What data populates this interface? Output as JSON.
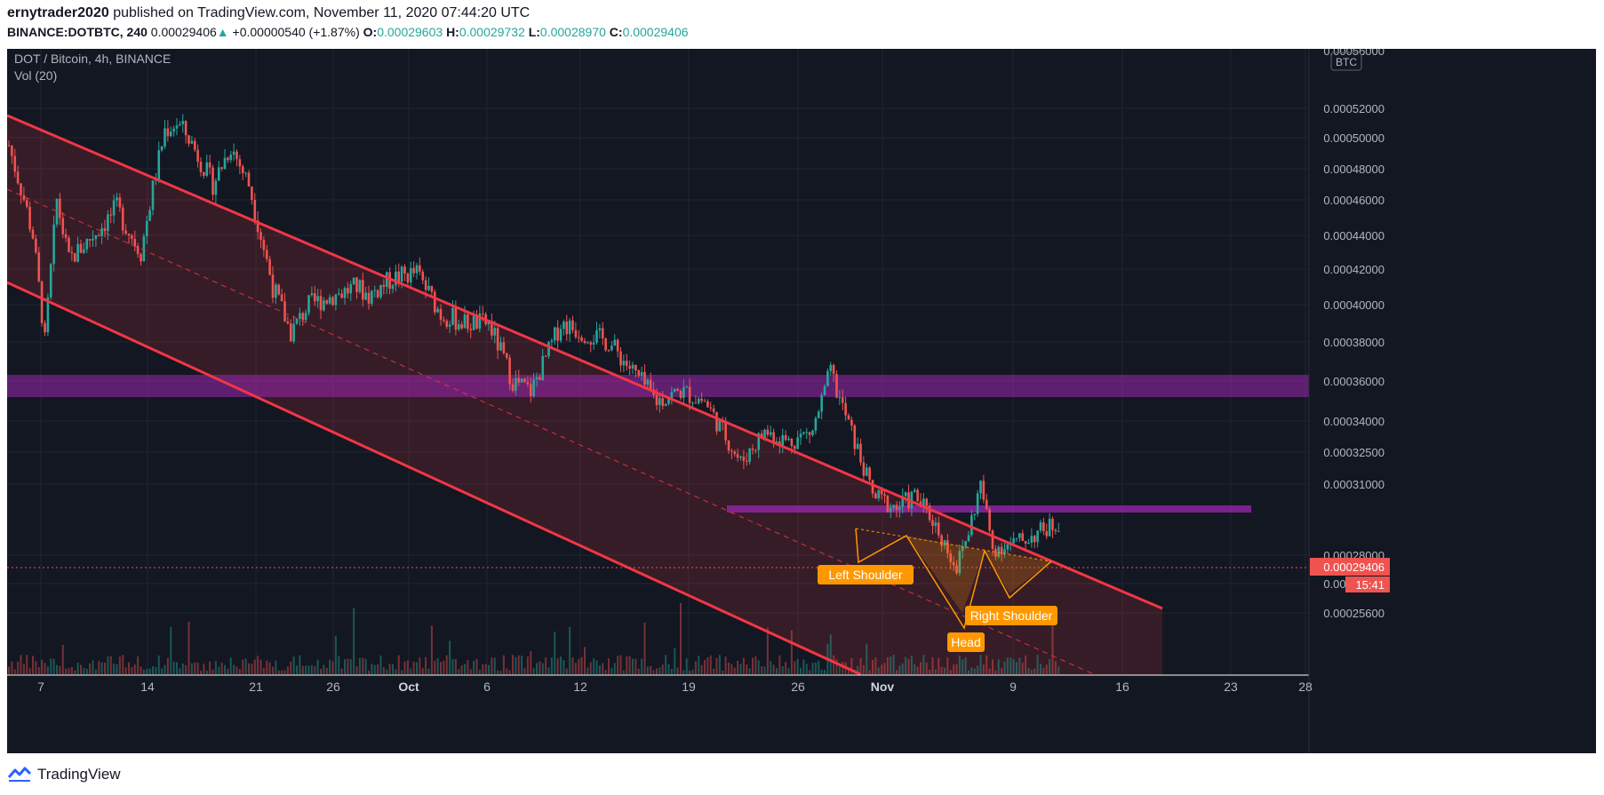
{
  "header": {
    "author": "ernytrader2020",
    "published_text": " published on TradingView.com, November 11, 2020 07:44:20 UTC",
    "symbol": "BINANCE:DOTBTC, 240",
    "last": "0.00029406",
    "change": "+0.00000540 (+1.87%)",
    "o_label": "O:",
    "o": "0.00029603",
    "h_label": "H:",
    "h": "0.00029732",
    "l_label": "L:",
    "l": "0.00028970",
    "c_label": "C:",
    "c": "0.00029406"
  },
  "legend": {
    "title": "DOT / Bitcoin, 4h, BINANCE",
    "volume": "Vol (20)"
  },
  "price_axis": {
    "currency": "BTC",
    "ticks": [
      "0.00052000",
      "0.00050000",
      "0.00048000",
      "0.00046000",
      "0.00044000",
      "0.00042000",
      "0.00040000",
      "0.00038000",
      "0.00036000",
      "0.00034000",
      "0.00032500",
      "0.00031000",
      "0.00028000",
      "0.00026800",
      "0.00025600"
    ],
    "top_partial": "0.00056000",
    "current_price": "0.00029406",
    "countdown": "15:41"
  },
  "time_axis": {
    "ticks": [
      "7",
      "14",
      "21",
      "26",
      "Oct",
      "6",
      "12",
      "19",
      "26",
      "Nov",
      "9",
      "16",
      "23",
      "28"
    ],
    "bold_ticks": [
      "Oct",
      "Nov"
    ]
  },
  "annotations": {
    "left_shoulder": "Left Shoulder",
    "head": "Head",
    "right_shoulder": "Right Shoulder"
  },
  "colors": {
    "background": "#131722",
    "up": "#26a69a",
    "down": "#ef5350",
    "channel": "#f23645",
    "zone": "#9c27b0",
    "pattern": "#ff9800",
    "label_bg": "#ff9800"
  },
  "footer": {
    "brand": "TradingView"
  },
  "chart_data": {
    "type": "candlestick",
    "title": "DOT / Bitcoin, 4h, BINANCE",
    "symbol": "BINANCE:DOTBTC",
    "interval": "240",
    "y_scale": "log",
    "ylim": [
      0.00024,
      0.00056
    ],
    "x_ticks": [
      "7",
      "14",
      "21",
      "26",
      "Oct",
      "6",
      "12",
      "19",
      "26",
      "Nov",
      "9",
      "16",
      "23",
      "28"
    ],
    "y_ticks": [
      0.00052,
      0.0005,
      0.00048,
      0.00046,
      0.00044,
      0.00042,
      0.0004,
      0.00038,
      0.00036,
      0.00034,
      0.000325,
      0.00031,
      0.00028,
      0.000268,
      0.000256
    ],
    "close_path": [
      [
        0.0,
        0.000495
      ],
      [
        2.0,
        0.00044
      ],
      [
        3.0,
        0.00038
      ],
      [
        4.0,
        0.00046
      ],
      [
        5.0,
        0.000425
      ],
      [
        7.0,
        0.00044
      ],
      [
        9.0,
        0.000455
      ],
      [
        11.0,
        0.00043
      ],
      [
        13.0,
        0.000505
      ],
      [
        14.0,
        0.00051
      ],
      [
        15.0,
        0.0005
      ],
      [
        17.0,
        0.00047
      ],
      [
        18.5,
        0.000495
      ],
      [
        20.0,
        0.00047
      ],
      [
        22.0,
        0.00041
      ],
      [
        23.5,
        0.000385
      ],
      [
        25.0,
        0.0004
      ],
      [
        27.0,
        0.000405
      ],
      [
        29.0,
        0.00041
      ],
      [
        30.0,
        0.000405
      ],
      [
        32.0,
        0.000415
      ],
      [
        34.0,
        0.000418
      ],
      [
        36.0,
        0.000395
      ],
      [
        38.0,
        0.00039
      ],
      [
        40.0,
        0.00039
      ],
      [
        42.0,
        0.00036
      ],
      [
        43.5,
        0.000355
      ],
      [
        45.0,
        0.000375
      ],
      [
        46.0,
        0.00039
      ],
      [
        48.0,
        0.000385
      ],
      [
        50.0,
        0.00038
      ],
      [
        52.0,
        0.000365
      ],
      [
        54.0,
        0.00035
      ],
      [
        56.0,
        0.000355
      ],
      [
        58.0,
        0.00035
      ],
      [
        60.0,
        0.00033
      ],
      [
        61.0,
        0.00032
      ],
      [
        63.0,
        0.000335
      ],
      [
        65.0,
        0.00033
      ],
      [
        67.0,
        0.000335
      ],
      [
        68.5,
        0.000365
      ],
      [
        69.0,
        0.000355
      ],
      [
        70.5,
        0.00033
      ],
      [
        72.0,
        0.000305
      ],
      [
        74.0,
        0.0003
      ],
      [
        75.5,
        0.000305
      ],
      [
        77.0,
        0.000295
      ],
      [
        79.0,
        0.000275
      ],
      [
        80.0,
        0.00029
      ],
      [
        81.0,
        0.00031
      ],
      [
        82.0,
        0.000283
      ],
      [
        84.0,
        0.000285
      ],
      [
        86.0,
        0.00029
      ],
      [
        87.5,
        0.000294
      ]
    ],
    "pattern": {
      "type": "head_and_shoulders_inverse",
      "labels": [
        "Left Shoulder",
        "Head",
        "Right Shoulder"
      ]
    },
    "volume_indicator": "Vol (20)",
    "last_price": 0.00029406
  }
}
